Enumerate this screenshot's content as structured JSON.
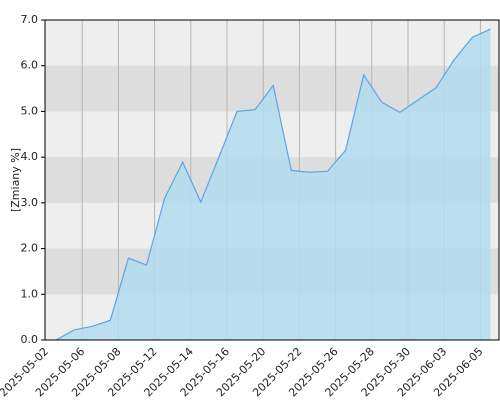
{
  "chart_data": {
    "type": "area",
    "y_label": "[Zmiany %]",
    "categories": [
      "2025-05-02",
      null,
      "2025-05-06",
      null,
      "2025-05-08",
      null,
      "2025-05-12",
      null,
      "2025-05-14",
      null,
      "2025-05-16",
      null,
      "2025-05-20",
      null,
      "2025-05-22",
      null,
      "2025-05-26",
      null,
      "2025-05-28",
      null,
      "2025-05-30",
      null,
      "2025-06-03",
      null,
      "2025-06-05"
    ],
    "values": [
      0,
      0.22,
      0.3,
      0.43,
      1.79,
      1.64,
      3.1,
      3.89,
      3.02,
      4.0,
      5.0,
      5.04,
      5.57,
      3.71,
      3.67,
      3.69,
      4.15,
      5.8,
      5.2,
      4.98,
      5.25,
      5.52,
      6.13,
      6.62,
      6.8
    ],
    "color": "#5aa5e6",
    "fill": "#b3dcef",
    "ylim": [
      0,
      7
    ],
    "yticks": [
      {
        "value": 0,
        "label": "0.0"
      },
      {
        "value": 1,
        "label": "1.0"
      },
      {
        "value": 2,
        "label": "2.0"
      },
      {
        "value": 3,
        "label": "3.0"
      },
      {
        "value": 4,
        "label": "4.0"
      },
      {
        "value": 5,
        "label": "5.0"
      },
      {
        "value": 6,
        "label": "6.0"
      },
      {
        "value": 7,
        "label": "7.0"
      }
    ],
    "grid": true
  }
}
